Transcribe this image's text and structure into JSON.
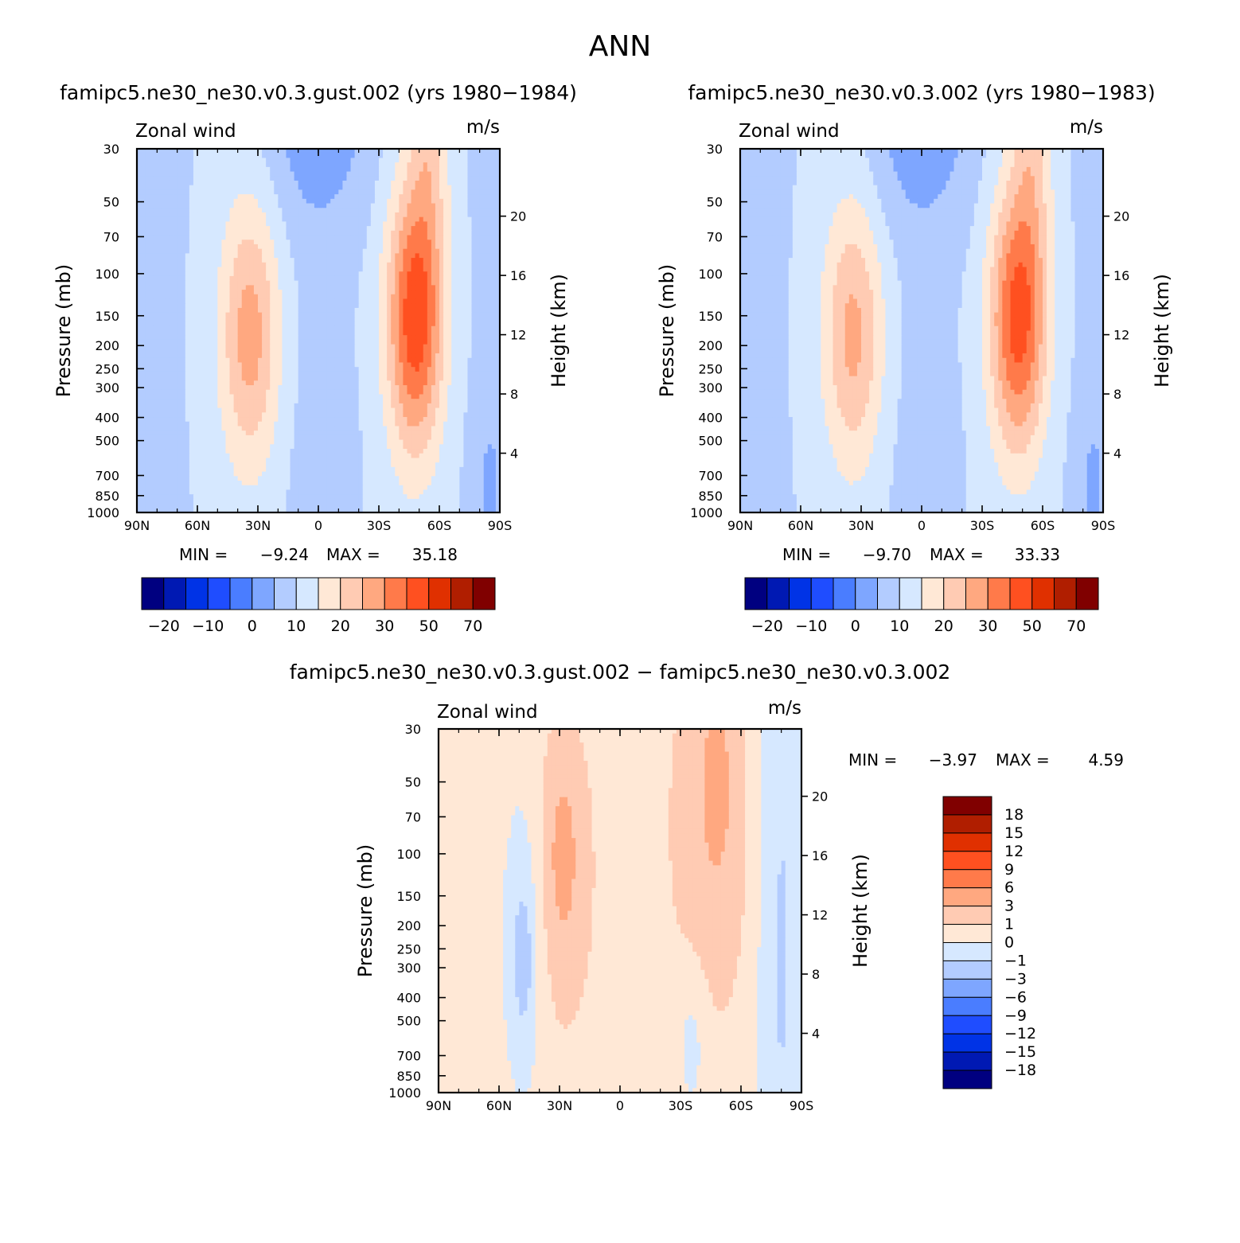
{
  "title": "ANN",
  "panels": [
    {
      "id": "panel-gust",
      "title": "famipc5.ne30_ne30.v0.3.gust.002 (yrs 1980−1984)",
      "variable": "Zonal wind",
      "units": "m/s",
      "min_label": "MIN =",
      "min_value": "−9.24",
      "max_label": "MAX =",
      "max_value": "35.18"
    },
    {
      "id": "panel-control",
      "title": "famipc5.ne30_ne30.v0.3.002 (yrs 1980−1983)",
      "variable": "Zonal wind",
      "units": "m/s",
      "min_label": "MIN =",
      "min_value": "−9.70",
      "max_label": "MAX =",
      "max_value": "33.33"
    },
    {
      "id": "panel-diff",
      "title": "famipc5.ne30_ne30.v0.3.gust.002 − famipc5.ne30_ne30.v0.3.002",
      "variable": "Zonal wind",
      "units": "m/s",
      "min_label": "MIN =",
      "min_value": "−3.97",
      "max_label": "MAX =",
      "max_value": "4.59"
    }
  ],
  "axes": {
    "ylabel": "Pressure (mb)",
    "ylabel_right": "Height (km)",
    "pressure_ticks": [
      "30",
      "50",
      "70",
      "100",
      "150",
      "200",
      "250",
      "300",
      "400",
      "500",
      "700",
      "850",
      "1000"
    ],
    "pressure_values": [
      30,
      50,
      70,
      100,
      150,
      200,
      250,
      300,
      400,
      500,
      700,
      850,
      1000
    ],
    "height_ticks": [
      "20",
      "16",
      "12",
      "8",
      "4"
    ],
    "height_values": [
      20,
      16,
      12,
      8,
      4
    ],
    "lat_ticks": [
      "90N",
      "60N",
      "30N",
      "0",
      "30S",
      "60S",
      "90S"
    ],
    "lat_values": [
      90,
      60,
      30,
      0,
      -30,
      -60,
      -90
    ],
    "ylim": [
      1000,
      30
    ],
    "xlim": [
      90,
      -90
    ]
  },
  "colorbar_main": {
    "colors": [
      "#000080",
      "#0019b3",
      "#0033e6",
      "#1f4dff",
      "#4a7dff",
      "#7ea6ff",
      "#b3ccff",
      "#d6e8ff",
      "#ffe8d6",
      "#ffcbb3",
      "#ffa880",
      "#ff7a4a",
      "#ff5020",
      "#e03000",
      "#b01e00",
      "#800000"
    ],
    "labels": [
      "−20",
      "−10",
      "0",
      "10",
      "20",
      "30",
      "50",
      "70"
    ]
  },
  "colorbar_diff": {
    "colors": [
      "#800000",
      "#b01e00",
      "#e03000",
      "#ff5020",
      "#ff7a4a",
      "#ffa880",
      "#ffcbb3",
      "#ffe8d6",
      "#d6e8ff",
      "#b3ccff",
      "#7ea6ff",
      "#4a7dff",
      "#1f4dff",
      "#0033e6",
      "#0019b3",
      "#000080"
    ],
    "labels": [
      "18",
      "15",
      "12",
      "9",
      "6",
      "3",
      "1",
      "0",
      "−1",
      "−3",
      "−6",
      "−9",
      "−12",
      "−15",
      "−18"
    ]
  },
  "chart_data": [
    {
      "type": "heatmap",
      "title": "famipc5.ne30_ne30.v0.3.gust.002 (yrs 1980−1984)",
      "xlabel": "",
      "ylabel": "Pressure (mb)",
      "xlim": [
        90,
        -90
      ],
      "ylim": [
        1000,
        30
      ],
      "min": -9.24,
      "max": 35.18
    },
    {
      "type": "heatmap",
      "title": "famipc5.ne30_ne30.v0.3.002 (yrs 1980−1983)",
      "xlabel": "",
      "ylabel": "Pressure (mb)",
      "xlim": [
        90,
        -90
      ],
      "ylim": [
        1000,
        30
      ],
      "min": -9.7,
      "max": 33.33
    },
    {
      "type": "heatmap",
      "title": "famipc5.ne30_ne30.v0.3.gust.002 − famipc5.ne30_ne30.v0.3.002",
      "xlabel": "",
      "ylabel": "Pressure (mb)",
      "xlim": [
        90,
        -90
      ],
      "ylim": [
        1000,
        30
      ],
      "min": -3.97,
      "max": 4.59
    }
  ]
}
